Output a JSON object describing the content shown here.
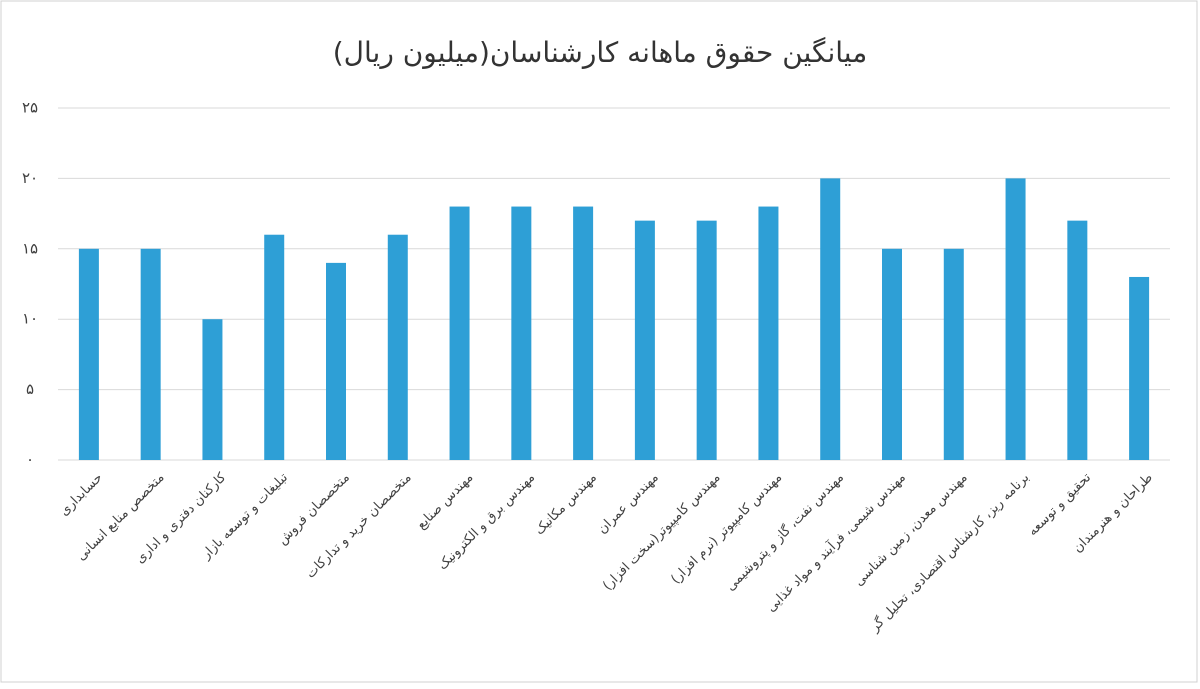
{
  "chart_data": {
    "type": "bar",
    "title": "میانگین حقوق ماهانه کارشناسان(میلیون ریال)",
    "categories": [
      "حسابداری",
      "متخصص منابع انسانی",
      "کارکنان دفتری و اداری",
      "تبلیغات و توسعه بازار",
      "متخصصان فروش",
      "متخصصان خرید و تدارکات",
      "مهندس صنایع",
      "مهندس برق و الکترونیک",
      "مهندس مکانیک",
      "مهندس عمران",
      "مهندس  کامپیوتر(سخت افزار)",
      "مهندس  کامپیوتر (نرم افزار)",
      "مهندس نفت، گاز و پتروشیمی",
      "مهندس شیمی، فرآیند و مواد غذایی",
      "مهندس معدن، زمین شناسی",
      "برنامه ریز، کارشناس اقتصادی، تحلیل گر",
      "تحقیق و توسعه",
      "طراحان و هنرمندان"
    ],
    "values": [
      15,
      15,
      10,
      16,
      14,
      16,
      18,
      18,
      18,
      17,
      17,
      18,
      20,
      15,
      15,
      20,
      17,
      13
    ],
    "color": "#2e9fd6",
    "ylim": [
      0,
      25
    ],
    "yticks": [
      {
        "value": 0,
        "label": "۰"
      },
      {
        "value": 5,
        "label": "۵"
      },
      {
        "value": 10,
        "label": "۱۰"
      },
      {
        "value": 15,
        "label": "۱۵"
      },
      {
        "value": 20,
        "label": "۲۰"
      },
      {
        "value": 25,
        "label": "۲۵"
      }
    ],
    "grid": true
  }
}
